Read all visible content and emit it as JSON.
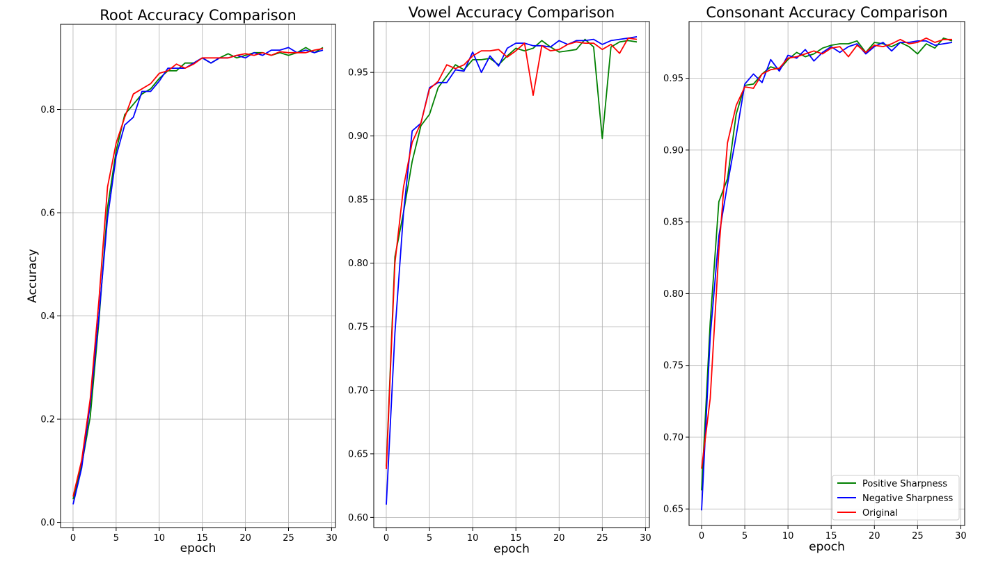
{
  "colors": {
    "positive": "#008000",
    "negative": "#0000ff",
    "original": "#ff0000",
    "grid": "#b0b0b0",
    "axis": "#000000"
  },
  "legend": {
    "placement": "lower-right",
    "entries": [
      "Positive Sharpness",
      "Negative Sharpness",
      "Original"
    ]
  },
  "chart_data": [
    {
      "type": "line",
      "title": "Root Accuracy Comparison",
      "xlabel": "epoch",
      "ylabel": "Accuracy",
      "xlim": [
        -1.45,
        30.45
      ],
      "ylim": [
        -0.01,
        0.965
      ],
      "xticks": [
        0,
        5,
        10,
        15,
        20,
        25,
        30
      ],
      "yticks": [
        0.0,
        0.2,
        0.4,
        0.6,
        0.8
      ],
      "ytick_labels": [
        "0.0",
        "0.2",
        "0.4",
        "0.6",
        "0.8"
      ],
      "grid": true,
      "legend": false,
      "x": [
        0,
        1,
        2,
        3,
        4,
        5,
        6,
        7,
        8,
        9,
        10,
        11,
        12,
        13,
        14,
        15,
        16,
        17,
        18,
        19,
        20,
        21,
        22,
        23,
        24,
        25,
        26,
        27,
        28,
        29
      ],
      "series": [
        {
          "name": "Positive Sharpness",
          "color_key": "positive",
          "values": [
            0.045,
            0.11,
            0.205,
            0.39,
            0.61,
            0.72,
            0.79,
            0.81,
            0.83,
            0.84,
            0.86,
            0.875,
            0.875,
            0.89,
            0.89,
            0.9,
            0.89,
            0.9,
            0.908,
            0.9,
            0.905,
            0.91,
            0.91,
            0.905,
            0.91,
            0.905,
            0.91,
            0.92,
            0.91,
            0.92
          ]
        },
        {
          "name": "Negative Sharpness",
          "color_key": "negative",
          "values": [
            0.035,
            0.105,
            0.23,
            0.4,
            0.59,
            0.71,
            0.77,
            0.785,
            0.835,
            0.835,
            0.855,
            0.88,
            0.88,
            0.88,
            0.89,
            0.9,
            0.89,
            0.9,
            0.9,
            0.905,
            0.9,
            0.91,
            0.905,
            0.915,
            0.915,
            0.92,
            0.91,
            0.915,
            0.91,
            0.915
          ]
        },
        {
          "name": "Original",
          "color_key": "original",
          "values": [
            0.05,
            0.12,
            0.24,
            0.43,
            0.65,
            0.735,
            0.785,
            0.83,
            0.84,
            0.85,
            0.87,
            0.875,
            0.888,
            0.88,
            0.888,
            0.9,
            0.9,
            0.9,
            0.9,
            0.905,
            0.908,
            0.905,
            0.91,
            0.905,
            0.912,
            0.91,
            0.91,
            0.91,
            0.915,
            0.918
          ]
        }
      ]
    },
    {
      "type": "line",
      "title": "Vowel Accuracy Comparison",
      "xlabel": "epoch",
      "ylabel": "",
      "xlim": [
        -1.45,
        30.45
      ],
      "ylim": [
        0.592,
        0.99
      ],
      "xticks": [
        0,
        5,
        10,
        15,
        20,
        25,
        30
      ],
      "yticks": [
        0.6,
        0.65,
        0.7,
        0.75,
        0.8,
        0.85,
        0.9,
        0.95
      ],
      "ytick_labels": [
        "0.60",
        "0.65",
        "0.70",
        "0.75",
        "0.80",
        "0.85",
        "0.90",
        "0.95"
      ],
      "grid": true,
      "legend": false,
      "x": [
        0,
        1,
        2,
        3,
        4,
        5,
        6,
        7,
        8,
        9,
        10,
        11,
        12,
        13,
        14,
        15,
        16,
        17,
        18,
        19,
        20,
        21,
        22,
        23,
        24,
        25,
        26,
        27,
        28,
        29
      ],
      "series": [
        {
          "name": "Positive Sharpness",
          "color_key": "positive",
          "values": [
            0.64,
            0.805,
            0.84,
            0.88,
            0.908,
            0.917,
            0.938,
            0.947,
            0.956,
            0.952,
            0.96,
            0.96,
            0.961,
            0.956,
            0.963,
            0.969,
            0.967,
            0.969,
            0.975,
            0.97,
            0.966,
            0.967,
            0.968,
            0.976,
            0.97,
            0.898,
            0.97,
            0.974,
            0.975,
            0.974
          ]
        },
        {
          "name": "Negative Sharpness",
          "color_key": "negative",
          "values": [
            0.61,
            0.745,
            0.84,
            0.904,
            0.91,
            0.938,
            0.942,
            0.942,
            0.952,
            0.951,
            0.966,
            0.95,
            0.963,
            0.955,
            0.969,
            0.973,
            0.973,
            0.971,
            0.971,
            0.97,
            0.975,
            0.972,
            0.975,
            0.975,
            0.976,
            0.972,
            0.975,
            0.976,
            0.977,
            0.978
          ]
        },
        {
          "name": "Original",
          "color_key": "original",
          "values": [
            0.638,
            0.8,
            0.86,
            0.895,
            0.91,
            0.937,
            0.943,
            0.956,
            0.953,
            0.956,
            0.963,
            0.967,
            0.967,
            0.968,
            0.962,
            0.967,
            0.973,
            0.932,
            0.971,
            0.967,
            0.968,
            0.972,
            0.974,
            0.973,
            0.973,
            0.968,
            0.972,
            0.965,
            0.977,
            0.976
          ]
        }
      ]
    },
    {
      "type": "line",
      "title": "Consonant Accuracy Comparison",
      "xlabel": "epoch",
      "ylabel": "",
      "xlim": [
        -1.45,
        30.45
      ],
      "ylim": [
        0.6385,
        0.9895
      ],
      "xticks": [
        0,
        5,
        10,
        15,
        20,
        25,
        30
      ],
      "yticks": [
        0.65,
        0.7,
        0.75,
        0.8,
        0.85,
        0.9,
        0.95
      ],
      "ytick_labels": [
        "0.65",
        "0.70",
        "0.75",
        "0.80",
        "0.85",
        "0.90",
        "0.95"
      ],
      "grid": true,
      "legend": true,
      "x": [
        0,
        1,
        2,
        3,
        4,
        5,
        6,
        7,
        8,
        9,
        10,
        11,
        12,
        13,
        14,
        15,
        16,
        17,
        18,
        19,
        20,
        21,
        22,
        23,
        24,
        25,
        26,
        27,
        28,
        29
      ],
      "series": [
        {
          "name": "Positive Sharpness",
          "color_key": "positive",
          "values": [
            0.663,
            0.78,
            0.864,
            0.88,
            0.925,
            0.945,
            0.946,
            0.953,
            0.958,
            0.956,
            0.963,
            0.968,
            0.965,
            0.967,
            0.971,
            0.973,
            0.974,
            0.974,
            0.976,
            0.968,
            0.975,
            0.974,
            0.972,
            0.975,
            0.972,
            0.967,
            0.974,
            0.971,
            0.978,
            0.976
          ]
        },
        {
          "name": "Negative Sharpness",
          "color_key": "negative",
          "values": [
            0.649,
            0.77,
            0.84,
            0.876,
            0.91,
            0.946,
            0.953,
            0.947,
            0.963,
            0.955,
            0.966,
            0.964,
            0.97,
            0.962,
            0.968,
            0.972,
            0.968,
            0.972,
            0.974,
            0.967,
            0.972,
            0.975,
            0.969,
            0.975,
            0.975,
            0.976,
            0.976,
            0.973,
            0.974,
            0.975
          ]
        },
        {
          "name": "Original",
          "color_key": "original",
          "values": [
            0.678,
            0.727,
            0.83,
            0.905,
            0.931,
            0.944,
            0.943,
            0.953,
            0.956,
            0.957,
            0.964,
            0.965,
            0.967,
            0.969,
            0.967,
            0.971,
            0.972,
            0.965,
            0.973,
            0.968,
            0.973,
            0.972,
            0.974,
            0.977,
            0.974,
            0.975,
            0.978,
            0.975,
            0.977,
            0.977
          ]
        }
      ]
    }
  ]
}
